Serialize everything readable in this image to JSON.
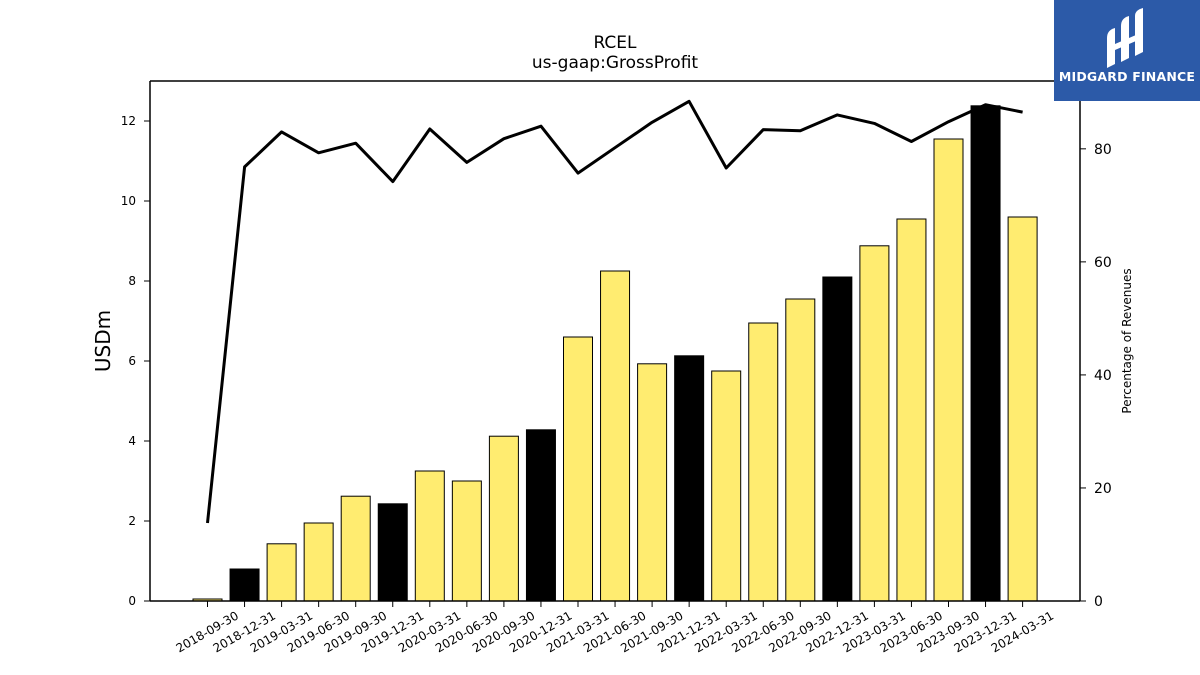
{
  "chart_data": {
    "type": "bar",
    "title": "RCEL",
    "subtitle": "us-gaap:GrossProfit",
    "ylabel": "USDm",
    "y2label": "Percentage of Revenues",
    "ylim": [
      0,
      13
    ],
    "y2lim": [
      0,
      92
    ],
    "yticks": [
      "0",
      "2",
      "4",
      "6",
      "8",
      "10",
      "12"
    ],
    "y2ticks": [
      "0",
      "20",
      "40",
      "60",
      "80"
    ],
    "categories": [
      "2018-09-30",
      "2018-12-31",
      "2019-03-31",
      "2019-06-30",
      "2019-09-30",
      "2019-12-31",
      "2020-03-31",
      "2020-06-30",
      "2020-09-30",
      "2020-12-31",
      "2021-03-31",
      "2021-06-30",
      "2021-09-30",
      "2021-12-31",
      "2022-03-31",
      "2022-06-30",
      "2022-09-30",
      "2022-12-31",
      "2023-03-31",
      "2023-06-30",
      "2023-09-30",
      "2023-12-31",
      "2024-03-31"
    ],
    "series": [
      {
        "kind": "bar",
        "values": [
          0.05,
          0.8,
          1.43,
          1.95,
          2.62,
          2.43,
          3.25,
          3.0,
          4.12,
          4.28,
          6.6,
          8.25,
          5.93,
          6.13,
          5.75,
          6.95,
          7.55,
          8.1,
          8.88,
          9.55,
          11.55,
          12.38,
          9.6
        ],
        "highlight": [
          false,
          true,
          false,
          false,
          false,
          true,
          false,
          false,
          false,
          true,
          false,
          false,
          false,
          true,
          false,
          false,
          false,
          true,
          false,
          false,
          false,
          true,
          false
        ]
      },
      {
        "kind": "line",
        "axis": "right",
        "values": [
          13.8,
          76.8,
          83.0,
          79.3,
          81.0,
          74.2,
          83.5,
          77.6,
          81.8,
          84.0,
          75.7,
          80.2,
          84.7,
          88.4,
          76.6,
          83.4,
          83.2,
          86.0,
          84.5,
          81.3,
          84.8,
          87.8,
          86.5
        ]
      }
    ],
    "colors": {
      "bar": "#ffec70",
      "bar_highlight": "#000000",
      "line": "#000000",
      "logo_bg": "#2c5aa8"
    },
    "grid": false
  },
  "logo": {
    "text": "MIDGARD FINANCE",
    "icon": "midgard-logo-icon"
  }
}
